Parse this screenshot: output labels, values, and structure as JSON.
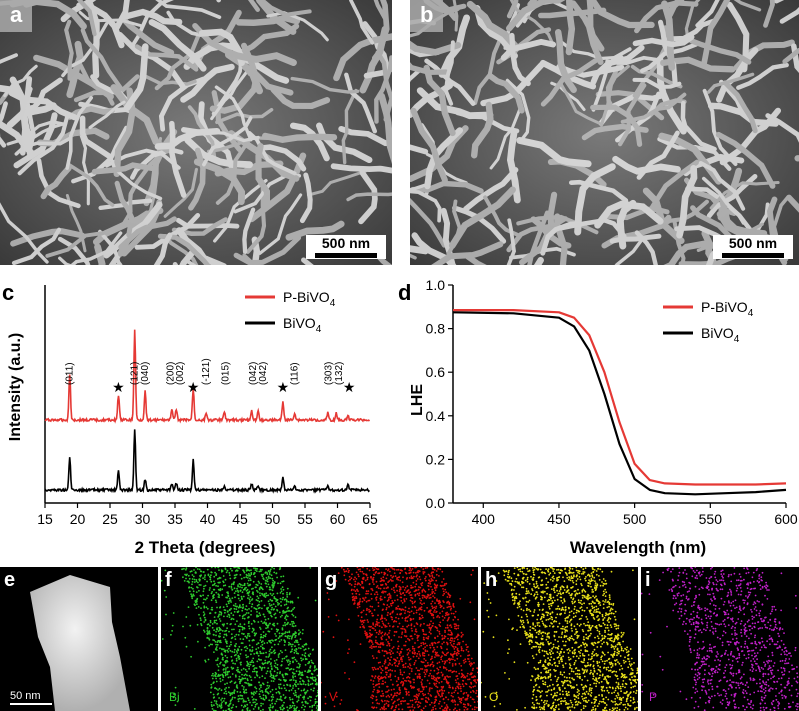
{
  "panels": {
    "a": {
      "label": "a",
      "scale": "500 nm"
    },
    "b": {
      "label": "b",
      "scale": "500 nm"
    },
    "c": {
      "label": "c"
    },
    "d": {
      "label": "d"
    },
    "e": {
      "label": "e",
      "scale": "50 nm"
    },
    "f": {
      "label": "f",
      "element": "Bi",
      "color": "#2ecc2e"
    },
    "g": {
      "label": "g",
      "element": "V",
      "color": "#e01010"
    },
    "h": {
      "label": "h",
      "element": "O",
      "color": "#e8e01a"
    },
    "i": {
      "label": "i",
      "element": "P",
      "color": "#c020c8"
    }
  },
  "chart_data": [
    {
      "type": "line",
      "panel": "c",
      "xlabel": "2 Theta (degrees)",
      "ylabel": "Intensity (a.u.)",
      "xlim": [
        15,
        65
      ],
      "xticks": [
        "15",
        "20",
        "25",
        "30",
        "35",
        "40",
        "45",
        "50",
        "55",
        "60",
        "65"
      ],
      "legend": {
        "position": "top-right",
        "entries": [
          {
            "name": "P-BiVO",
            "sub": "4",
            "color": "#e53935"
          },
          {
            "name": "BiVO",
            "sub": "4",
            "color": "#000000"
          }
        ]
      },
      "series": [
        {
          "name": "P-BiVO4",
          "color": "#e53935",
          "peaks": [
            {
              "x": 18.8,
              "h": 0.5
            },
            {
              "x": 26.3,
              "h": 0.28
            },
            {
              "x": 28.8,
              "h": 1.0
            },
            {
              "x": 30.4,
              "h": 0.32
            },
            {
              "x": 34.5,
              "h": 0.12
            },
            {
              "x": 35.2,
              "h": 0.12
            },
            {
              "x": 37.8,
              "h": 0.35
            },
            {
              "x": 39.8,
              "h": 0.08
            },
            {
              "x": 42.6,
              "h": 0.1
            },
            {
              "x": 46.8,
              "h": 0.1
            },
            {
              "x": 47.8,
              "h": 0.1
            },
            {
              "x": 51.6,
              "h": 0.2
            },
            {
              "x": 53.4,
              "h": 0.08
            },
            {
              "x": 58.5,
              "h": 0.08
            },
            {
              "x": 59.8,
              "h": 0.08
            },
            {
              "x": 61.6,
              "h": 0.06
            }
          ]
        },
        {
          "name": "BiVO4",
          "color": "#000000",
          "peaks": [
            {
              "x": 18.8,
              "h": 0.55
            },
            {
              "x": 26.3,
              "h": 0.32
            },
            {
              "x": 28.8,
              "h": 1.0
            },
            {
              "x": 30.4,
              "h": 0.18
            },
            {
              "x": 34.5,
              "h": 0.1
            },
            {
              "x": 35.2,
              "h": 0.12
            },
            {
              "x": 37.8,
              "h": 0.5
            },
            {
              "x": 42.6,
              "h": 0.08
            },
            {
              "x": 46.8,
              "h": 0.1
            },
            {
              "x": 47.8,
              "h": 0.08
            },
            {
              "x": 51.6,
              "h": 0.2
            },
            {
              "x": 53.4,
              "h": 0.06
            },
            {
              "x": 58.5,
              "h": 0.06
            },
            {
              "x": 61.6,
              "h": 0.1
            }
          ]
        }
      ],
      "annotations": [
        {
          "text": "(011)",
          "x": 18.8,
          "kind": "hkl"
        },
        {
          "text": "★",
          "x": 26.3,
          "kind": "star"
        },
        {
          "text": "(121)",
          "x": 28.8,
          "kind": "hkl"
        },
        {
          "text": "(040)",
          "x": 30.4,
          "kind": "hkl"
        },
        {
          "text": "(200)",
          "x": 34.3,
          "kind": "hkl"
        },
        {
          "text": "(002)",
          "x": 35.8,
          "kind": "hkl"
        },
        {
          "text": "★",
          "x": 37.8,
          "kind": "star"
        },
        {
          "text": "(-121)",
          "x": 39.8,
          "kind": "hkl"
        },
        {
          "text": "(015)",
          "x": 42.8,
          "kind": "hkl"
        },
        {
          "text": "(042)",
          "x": 47.0,
          "kind": "hkl"
        },
        {
          "text": "(042)",
          "x": 48.5,
          "kind": "hkl"
        },
        {
          "text": "★",
          "x": 51.6,
          "kind": "star"
        },
        {
          "text": "(116)",
          "x": 53.4,
          "kind": "hkl"
        },
        {
          "text": "(303)",
          "x": 58.6,
          "kind": "hkl"
        },
        {
          "text": "(132)",
          "x": 60.2,
          "kind": "hkl"
        },
        {
          "text": "★",
          "x": 61.8,
          "kind": "star"
        }
      ]
    },
    {
      "type": "line",
      "panel": "d",
      "xlabel": "Wavelength (nm)",
      "ylabel": "LHE",
      "xlim": [
        380,
        600
      ],
      "ylim": [
        0,
        1.0
      ],
      "xticks": [
        "400",
        "450",
        "500",
        "550",
        "600"
      ],
      "yticks": [
        "0.0",
        "0.2",
        "0.4",
        "0.6",
        "0.8",
        "1.0"
      ],
      "legend": {
        "position": "top-right",
        "entries": [
          {
            "name": "P-BiVO",
            "sub": "4",
            "color": "#e53935"
          },
          {
            "name": "BiVO",
            "sub": "4",
            "color": "#000000"
          }
        ]
      },
      "series": [
        {
          "name": "P-BiVO4",
          "color": "#e53935",
          "x": [
            380,
            420,
            450,
            460,
            470,
            480,
            490,
            500,
            510,
            520,
            540,
            560,
            580,
            600
          ],
          "y": [
            0.885,
            0.885,
            0.875,
            0.85,
            0.77,
            0.6,
            0.37,
            0.18,
            0.105,
            0.09,
            0.085,
            0.085,
            0.085,
            0.09
          ]
        },
        {
          "name": "BiVO4",
          "color": "#000000",
          "x": [
            380,
            420,
            450,
            460,
            470,
            480,
            490,
            500,
            510,
            520,
            540,
            560,
            580,
            600
          ],
          "y": [
            0.875,
            0.87,
            0.85,
            0.81,
            0.7,
            0.5,
            0.27,
            0.11,
            0.06,
            0.045,
            0.04,
            0.045,
            0.05,
            0.06
          ]
        }
      ]
    }
  ]
}
